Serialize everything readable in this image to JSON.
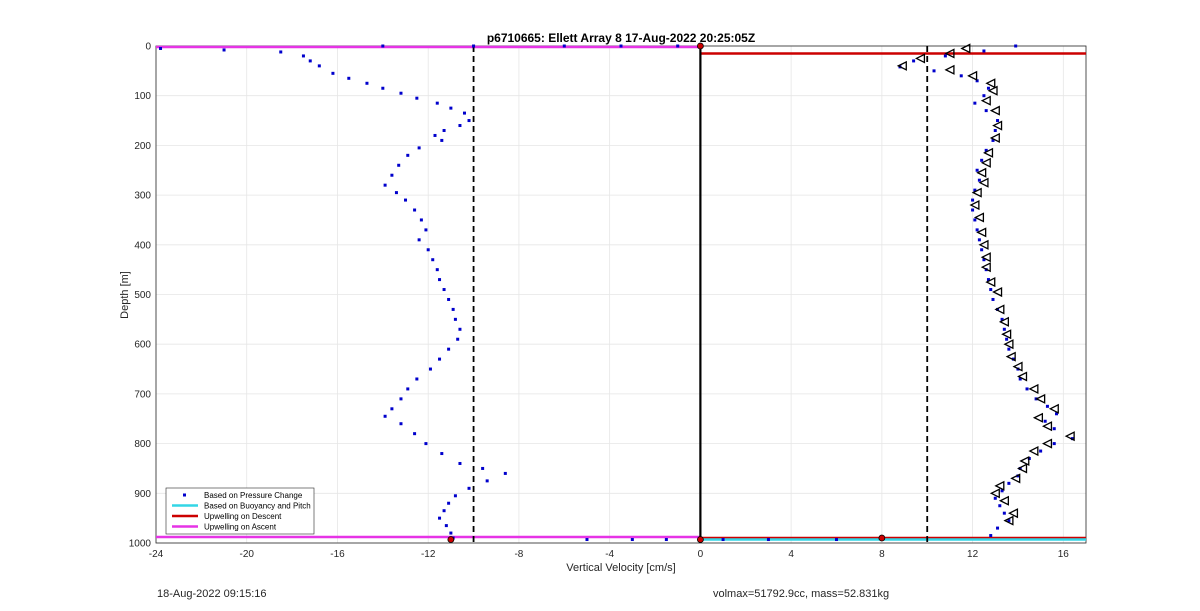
{
  "chart_data": {
    "type": "scatter",
    "title": "p6710665: Ellett Array 8 17-Aug-2022 20:25:05Z",
    "xlabel": "Vertical Velocity [cm/s]",
    "ylabel": "Depth [m]",
    "xlim": [
      -24,
      17
    ],
    "ylim": [
      0,
      1000
    ],
    "y_reversed": true,
    "xticks": [
      -24,
      -20,
      -16,
      -12,
      -8,
      -4,
      0,
      4,
      8,
      12,
      16
    ],
    "yticks": [
      0,
      100,
      200,
      300,
      400,
      500,
      600,
      700,
      800,
      900,
      1000
    ],
    "grid": true,
    "legend_position": "bottom-left",
    "legend": [
      {
        "label": "Based on Pressure Change",
        "color": "#0000cc",
        "style": "dot"
      },
      {
        "label": "Based on Buoyancy and Pitch",
        "color": "#33d6e6",
        "style": "line"
      },
      {
        "label": "Upwelling on Descent",
        "color": "#cc0000",
        "style": "line"
      },
      {
        "label": "Upwelling on Ascent",
        "color": "#e633e6",
        "style": "line"
      }
    ],
    "vertical_lines": [
      {
        "x": 0,
        "color": "#000000",
        "style": "solid"
      },
      {
        "x": -10,
        "color": "#000000",
        "style": "dashed"
      },
      {
        "x": 10,
        "color": "#000000",
        "style": "dashed"
      }
    ],
    "horizontal_lines": [
      {
        "y": 2,
        "x": [
          -24,
          0
        ],
        "color": "#e633e6"
      },
      {
        "y": 988,
        "x": [
          -24,
          0
        ],
        "color": "#e633e6"
      },
      {
        "y": 15,
        "x": [
          0,
          17
        ],
        "color": "#cc0000"
      },
      {
        "y": 990,
        "x": [
          0,
          17
        ],
        "color": "#cc0000"
      },
      {
        "y": 993,
        "x": [
          0,
          17
        ],
        "color": "#33d6e6"
      }
    ],
    "series": [
      {
        "role": "ascent-profile",
        "color": "#0000cc",
        "points": [
          [
            -23.8,
            5
          ],
          [
            -21.0,
            8
          ],
          [
            -18.5,
            12
          ],
          [
            -17.5,
            20
          ],
          [
            -17.2,
            30
          ],
          [
            -16.8,
            40
          ],
          [
            -16.2,
            55
          ],
          [
            -15.5,
            65
          ],
          [
            -14.7,
            75
          ],
          [
            -14.0,
            85
          ],
          [
            -13.2,
            95
          ],
          [
            -12.5,
            105
          ],
          [
            -11.6,
            115
          ],
          [
            -11.0,
            125
          ],
          [
            -10.4,
            135
          ],
          [
            -10.2,
            150
          ],
          [
            -10.6,
            160
          ],
          [
            -11.3,
            170
          ],
          [
            -11.7,
            180
          ],
          [
            -11.4,
            190
          ],
          [
            -12.4,
            205
          ],
          [
            -12.9,
            220
          ],
          [
            -13.3,
            240
          ],
          [
            -13.6,
            260
          ],
          [
            -13.9,
            280
          ],
          [
            -13.4,
            295
          ],
          [
            -13.0,
            310
          ],
          [
            -12.6,
            330
          ],
          [
            -12.3,
            350
          ],
          [
            -12.1,
            370
          ],
          [
            -12.4,
            390
          ],
          [
            -12.0,
            410
          ],
          [
            -11.8,
            430
          ],
          [
            -11.6,
            450
          ],
          [
            -11.5,
            470
          ],
          [
            -11.3,
            490
          ],
          [
            -11.1,
            510
          ],
          [
            -10.9,
            530
          ],
          [
            -10.8,
            550
          ],
          [
            -10.6,
            570
          ],
          [
            -10.7,
            590
          ],
          [
            -11.1,
            610
          ],
          [
            -11.5,
            630
          ],
          [
            -11.9,
            650
          ],
          [
            -12.5,
            670
          ],
          [
            -12.9,
            690
          ],
          [
            -13.2,
            710
          ],
          [
            -13.6,
            730
          ],
          [
            -13.9,
            745
          ],
          [
            -13.2,
            760
          ],
          [
            -12.6,
            780
          ],
          [
            -12.1,
            800
          ],
          [
            -11.4,
            820
          ],
          [
            -10.6,
            840
          ],
          [
            -9.6,
            850
          ],
          [
            -8.6,
            860
          ],
          [
            -9.4,
            875
          ],
          [
            -10.2,
            890
          ],
          [
            -10.8,
            905
          ],
          [
            -11.1,
            920
          ],
          [
            -11.3,
            935
          ],
          [
            -11.5,
            950
          ],
          [
            -11.2,
            965
          ],
          [
            -11.0,
            980
          ],
          [
            -10.9,
            990
          ]
        ]
      },
      {
        "role": "descent-profile",
        "color": "#0000cc",
        "points": [
          [
            13.9,
            0
          ],
          [
            12.5,
            10
          ],
          [
            10.8,
            20
          ],
          [
            9.4,
            30
          ],
          [
            8.8,
            42
          ],
          [
            10.3,
            50
          ],
          [
            11.5,
            60
          ],
          [
            12.2,
            70
          ],
          [
            12.7,
            85
          ],
          [
            12.5,
            100
          ],
          [
            12.1,
            115
          ],
          [
            12.6,
            130
          ],
          [
            13.1,
            150
          ],
          [
            13.0,
            170
          ],
          [
            12.9,
            190
          ],
          [
            12.6,
            210
          ],
          [
            12.4,
            230
          ],
          [
            12.2,
            250
          ],
          [
            12.3,
            270
          ],
          [
            12.1,
            290
          ],
          [
            12.0,
            310
          ],
          [
            12.0,
            330
          ],
          [
            12.1,
            350
          ],
          [
            12.2,
            370
          ],
          [
            12.3,
            390
          ],
          [
            12.4,
            410
          ],
          [
            12.5,
            430
          ],
          [
            12.6,
            450
          ],
          [
            12.7,
            470
          ],
          [
            12.8,
            490
          ],
          [
            12.9,
            510
          ],
          [
            13.1,
            530
          ],
          [
            13.3,
            550
          ],
          [
            13.4,
            570
          ],
          [
            13.5,
            590
          ],
          [
            13.6,
            610
          ],
          [
            13.8,
            630
          ],
          [
            14.0,
            650
          ],
          [
            14.1,
            670
          ],
          [
            14.4,
            690
          ],
          [
            14.8,
            710
          ],
          [
            15.3,
            725
          ],
          [
            15.7,
            740
          ],
          [
            15.2,
            755
          ],
          [
            15.6,
            770
          ],
          [
            16.4,
            790
          ],
          [
            15.6,
            800
          ],
          [
            15.0,
            815
          ],
          [
            14.5,
            830
          ],
          [
            14.1,
            850
          ],
          [
            14.0,
            865
          ],
          [
            13.6,
            880
          ],
          [
            13.3,
            895
          ],
          [
            13.0,
            910
          ],
          [
            13.2,
            925
          ],
          [
            13.4,
            940
          ],
          [
            13.6,
            955
          ],
          [
            13.1,
            970
          ],
          [
            12.8,
            985
          ]
        ]
      },
      {
        "role": "descent-markers",
        "color": "#000000",
        "marker": "triangle-left",
        "points": [
          [
            11.7,
            5
          ],
          [
            11.0,
            15
          ],
          [
            9.7,
            25
          ],
          [
            8.9,
            40
          ],
          [
            11.0,
            48
          ],
          [
            12.0,
            60
          ],
          [
            12.8,
            75
          ],
          [
            12.9,
            90
          ],
          [
            12.6,
            110
          ],
          [
            13.0,
            130
          ],
          [
            13.1,
            160
          ],
          [
            13.0,
            185
          ],
          [
            12.7,
            215
          ],
          [
            12.6,
            235
          ],
          [
            12.4,
            255
          ],
          [
            12.5,
            275
          ],
          [
            12.2,
            295
          ],
          [
            12.1,
            320
          ],
          [
            12.3,
            345
          ],
          [
            12.4,
            375
          ],
          [
            12.5,
            400
          ],
          [
            12.6,
            425
          ],
          [
            12.6,
            445
          ],
          [
            12.8,
            475
          ],
          [
            13.1,
            495
          ],
          [
            13.2,
            530
          ],
          [
            13.4,
            555
          ],
          [
            13.5,
            580
          ],
          [
            13.6,
            600
          ],
          [
            13.7,
            625
          ],
          [
            14.0,
            645
          ],
          [
            14.2,
            665
          ],
          [
            14.7,
            690
          ],
          [
            15.0,
            710
          ],
          [
            15.6,
            730
          ],
          [
            14.9,
            748
          ],
          [
            15.3,
            765
          ],
          [
            16.3,
            785
          ],
          [
            15.3,
            800
          ],
          [
            14.7,
            815
          ],
          [
            14.3,
            835
          ],
          [
            14.2,
            850
          ],
          [
            13.9,
            870
          ],
          [
            13.2,
            885
          ],
          [
            13.0,
            900
          ],
          [
            13.4,
            915
          ],
          [
            13.8,
            940
          ],
          [
            13.6,
            955
          ]
        ]
      },
      {
        "role": "surface-markers",
        "color": "#0000cc",
        "points": [
          [
            -14,
            0
          ],
          [
            -10,
            0
          ],
          [
            -6,
            0
          ],
          [
            -3.5,
            0
          ],
          [
            -1,
            0
          ],
          [
            0,
            0
          ],
          [
            -5,
            993
          ],
          [
            -3,
            993
          ],
          [
            -1.5,
            993
          ],
          [
            1,
            993
          ],
          [
            3,
            993
          ],
          [
            6,
            993
          ],
          [
            8,
            990
          ]
        ]
      },
      {
        "role": "end-markers",
        "color": "#cc0000",
        "points": [
          [
            0,
            0
          ],
          [
            -11,
            993
          ],
          [
            0,
            993
          ],
          [
            8,
            990
          ]
        ]
      }
    ]
  },
  "footer": {
    "left": "18-Aug-2022 09:15:16",
    "right": "volmax=51792.9cc, mass=52.831kg"
  }
}
